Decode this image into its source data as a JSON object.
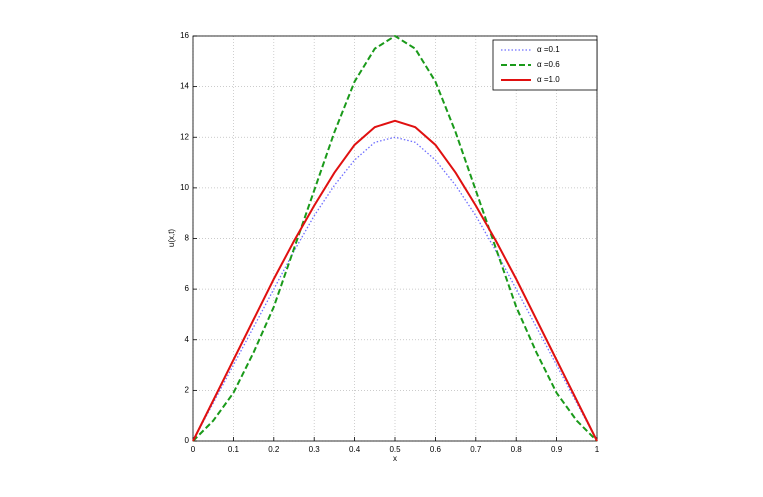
{
  "chart_data": {
    "type": "line",
    "xlabel": "x",
    "ylabel": "u(x,t)",
    "x": [
      0,
      0.05,
      0.1,
      0.15,
      0.2,
      0.25,
      0.3,
      0.35,
      0.4,
      0.45,
      0.5,
      0.55,
      0.6,
      0.65,
      0.7,
      0.75,
      0.8,
      0.85,
      0.9,
      0.95,
      1
    ],
    "series": [
      {
        "name": "α =0.1",
        "color": "#6f6fff",
        "linestyle": "dotted",
        "values": [
          0,
          1.5,
          3.0,
          4.5,
          6.0,
          7.5,
          8.9,
          10.1,
          11.1,
          11.8,
          12.0,
          11.8,
          11.1,
          10.1,
          8.9,
          7.5,
          6.0,
          4.5,
          3.0,
          1.5,
          0
        ]
      },
      {
        "name": "α =0.6",
        "color": "#1a9a1a",
        "linestyle": "dashed",
        "values": [
          0,
          0.8,
          1.9,
          3.5,
          5.3,
          7.6,
          9.9,
          12.2,
          14.2,
          15.5,
          16.0,
          15.5,
          14.2,
          12.2,
          9.9,
          7.6,
          5.3,
          3.5,
          1.9,
          0.8,
          0
        ]
      },
      {
        "name": "α =1.0",
        "color": "#e01010",
        "linestyle": "solid",
        "values": [
          0,
          1.6,
          3.2,
          4.8,
          6.4,
          7.9,
          9.3,
          10.6,
          11.7,
          12.4,
          12.65,
          12.4,
          11.7,
          10.6,
          9.3,
          7.9,
          6.4,
          4.8,
          3.2,
          1.6,
          0
        ]
      }
    ],
    "xlim": [
      0,
      1
    ],
    "xticks": [
      0,
      0.1,
      0.2,
      0.3,
      0.4,
      0.5,
      0.6,
      0.7,
      0.8,
      0.9,
      1
    ],
    "ylim": [
      0,
      16
    ],
    "yticks": [
      0,
      2,
      4,
      6,
      8,
      10,
      12,
      14,
      16
    ],
    "grid": true,
    "legend": "upper right"
  }
}
